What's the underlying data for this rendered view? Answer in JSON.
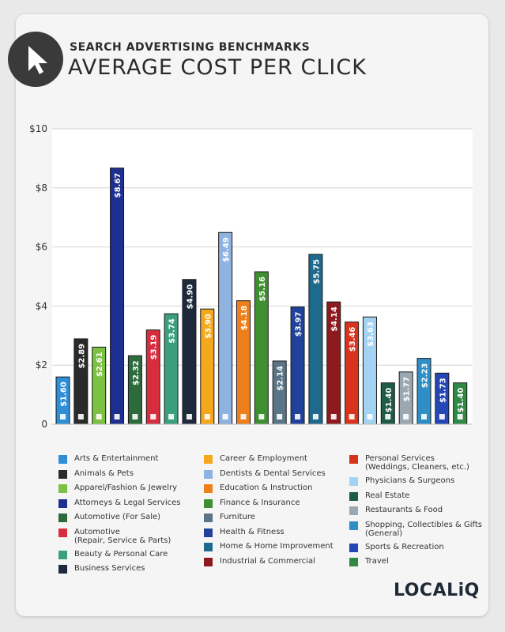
{
  "header": {
    "subtitle": "SEARCH ADVERTISING BENCHMARKS",
    "title": "AVERAGE COST PER CLICK",
    "brand": "LOCALiQ"
  },
  "chart_data": {
    "type": "bar",
    "ylim": [
      0,
      10
    ],
    "yticks": [
      0,
      2,
      4,
      6,
      8,
      10
    ],
    "ytick_labels": [
      "0",
      "$2",
      "$4",
      "$6",
      "$8",
      "$10"
    ],
    "grid": true,
    "legend_position": "bottom",
    "categories": [
      "Arts & Entertainment",
      "Animals & Pets",
      "Apparel/Fashion & Jewelry",
      "Attorneys & Legal Services",
      "Automotive (For Sale)",
      "Automotive\n(Repair, Service & Parts)",
      "Beauty & Personal Care",
      "Business Services",
      "Career & Employment",
      "Dentists & Dental Services",
      "Education & Instruction",
      "Finance & Insurance",
      "Furniture",
      "Health & Fitness",
      "Home & Home Improvement",
      "Industrial & Commercial",
      "Personal Services\n(Weddings, Cleaners, etc.)",
      "Physicians & Surgeons",
      "Real Estate",
      "Restaurants & Food",
      "Shopping, Collectibles & Gifts\n(General)",
      "Sports & Recreation",
      "Travel"
    ],
    "values": [
      1.6,
      2.89,
      2.61,
      8.67,
      2.32,
      3.19,
      3.74,
      4.9,
      3.9,
      6.49,
      4.18,
      5.16,
      2.14,
      3.97,
      5.75,
      4.14,
      3.46,
      3.63,
      1.4,
      1.77,
      2.23,
      1.73,
      1.4
    ],
    "value_labels": [
      "$1.60",
      "$2.89",
      "$2.61",
      "$8.67",
      "$2.32",
      "$3.19",
      "$3.74",
      "$4.90",
      "$3.90",
      "$6.49",
      "$4.18",
      "$5.16",
      "$2.14",
      "$3.97",
      "$5.75",
      "$4.14",
      "$3.46",
      "$3.63",
      "$1.40",
      "$1.77",
      "$2.23",
      "$1.73",
      "$1.40"
    ],
    "colors": [
      "#2f8fd6",
      "#2a2a2a",
      "#7cc142",
      "#1d2f8f",
      "#2e6b3c",
      "#d62d3f",
      "#3a9e7f",
      "#1e2a3c",
      "#f6a81d",
      "#8fb3e0",
      "#ef7f1a",
      "#3d8f2f",
      "#5a7587",
      "#21429b",
      "#1d6a8c",
      "#8c1a1e",
      "#d9331e",
      "#a3d3f3",
      "#1f5c46",
      "#9ba8b2",
      "#2e8fc7",
      "#2546b5",
      "#2f8a45"
    ],
    "icons": [
      "image-icon",
      "paw-icon",
      "shirt-icon",
      "gavel-icon",
      "car-tag-icon",
      "car-icon",
      "brush-icon",
      "briefcase-card-icon",
      "briefcase-icon",
      "tooth-icon",
      "graduation-cap-icon",
      "money-icon",
      "sofa-icon",
      "heart-rate-icon",
      "house-icon",
      "factory-icon",
      "hand-icon",
      "cross-icon",
      "building-icon",
      "fork-knife-icon",
      "gift-icon",
      "ball-icon",
      "plane-icon"
    ]
  }
}
